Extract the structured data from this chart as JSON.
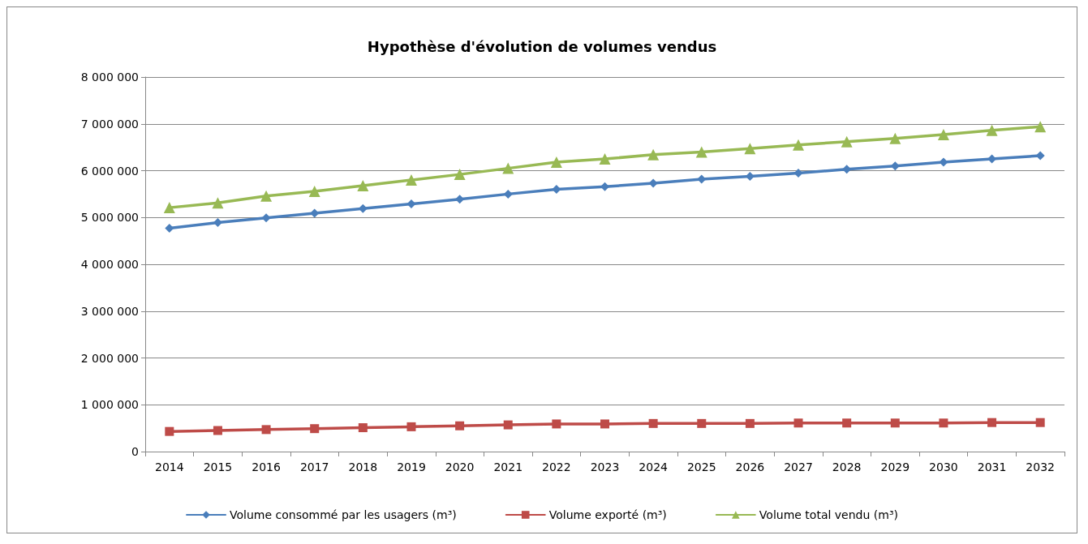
{
  "chart_data": {
    "type": "line",
    "title": "Hypothèse d'évolution de volumes vendus",
    "categories": [
      "2014",
      "2015",
      "2016",
      "2017",
      "2018",
      "2019",
      "2020",
      "2021",
      "2022",
      "2023",
      "2024",
      "2025",
      "2026",
      "2027",
      "2028",
      "2029",
      "2030",
      "2031",
      "2032"
    ],
    "series": [
      {
        "name": "Volume consommé par les usagers (m³)",
        "color": "#4a7ebb",
        "marker": "diamond",
        "values": [
          4770000,
          4890000,
          4990000,
          5090000,
          5190000,
          5290000,
          5390000,
          5500000,
          5600000,
          5660000,
          5730000,
          5820000,
          5880000,
          5950000,
          6030000,
          6100000,
          6180000,
          6250000,
          6320000
        ]
      },
      {
        "name": "Volume exporté (m³)",
        "color": "#be4b48",
        "marker": "square",
        "values": [
          430000,
          450000,
          470000,
          490000,
          510000,
          530000,
          550000,
          570000,
          590000,
          590000,
          600000,
          600000,
          600000,
          610000,
          610000,
          610000,
          610000,
          620000,
          620000
        ]
      },
      {
        "name": "Volume total vendu (m³)",
        "color": "#98b954",
        "marker": "triangle",
        "values": [
          5210000,
          5310000,
          5460000,
          5560000,
          5680000,
          5800000,
          5920000,
          6050000,
          6180000,
          6250000,
          6340000,
          6400000,
          6470000,
          6550000,
          6620000,
          6690000,
          6770000,
          6860000,
          6940000
        ]
      }
    ],
    "ylim": [
      0,
      8000000
    ],
    "yticks": [
      0,
      {
        "value": 1000000,
        "label": "1 000 000"
      },
      {
        "value": 2000000,
        "label": "2 000 000"
      },
      {
        "value": 3000000,
        "label": "3 000 000"
      },
      {
        "value": 4000000,
        "label": "4 000 000"
      },
      {
        "value": 5000000,
        "label": "5 000 000"
      },
      {
        "value": 6000000,
        "label": "6 000 000"
      },
      {
        "value": 7000000,
        "label": "7 000 000"
      },
      {
        "value": 8000000,
        "label": "8 000 000"
      }
    ],
    "grid": "y",
    "legend": "bottom",
    "line_style": "solid"
  }
}
